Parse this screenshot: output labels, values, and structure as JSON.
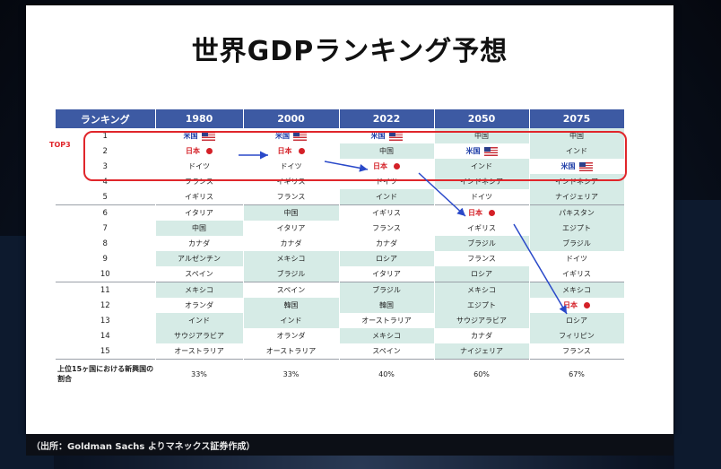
{
  "title": "世界GDPランキング予想",
  "top3_label": "TOP3",
  "footer": "（出所：Goldman Sachs よりマネックス証券作成）",
  "colors": {
    "header": "#3d5aa3",
    "highlight": "#d6ebe6",
    "japan": "#d42027",
    "us": "#1f3ea8",
    "arrow": "#2a49c9"
  },
  "table": {
    "headers": [
      "ランキング",
      "1980",
      "2000",
      "2022",
      "2050",
      "2075"
    ],
    "rows": [
      {
        "rank": "1",
        "cells": [
          {
            "t": "米国",
            "s": "us"
          },
          {
            "t": "米国",
            "s": "us"
          },
          {
            "t": "米国",
            "s": "us"
          },
          {
            "t": "中国",
            "h": true
          },
          {
            "t": "中国",
            "h": true
          }
        ]
      },
      {
        "rank": "2",
        "cells": [
          {
            "t": "日本",
            "s": "jp"
          },
          {
            "t": "日本",
            "s": "jp"
          },
          {
            "t": "中国",
            "h": true
          },
          {
            "t": "米国",
            "s": "us"
          },
          {
            "t": "インド",
            "h": true
          }
        ]
      },
      {
        "rank": "3",
        "cells": [
          {
            "t": "ドイツ"
          },
          {
            "t": "ドイツ"
          },
          {
            "t": "日本",
            "s": "jp"
          },
          {
            "t": "インド",
            "h": true
          },
          {
            "t": "米国",
            "s": "us"
          }
        ]
      },
      {
        "rank": "4",
        "cells": [
          {
            "t": "フランス"
          },
          {
            "t": "イギリス"
          },
          {
            "t": "ドイツ"
          },
          {
            "t": "インドネシア",
            "h": true
          },
          {
            "t": "インドネシア",
            "h": true
          }
        ]
      },
      {
        "rank": "5",
        "cells": [
          {
            "t": "イギリス"
          },
          {
            "t": "フランス"
          },
          {
            "t": "インド",
            "h": true
          },
          {
            "t": "ドイツ"
          },
          {
            "t": "ナイジェリア",
            "h": true
          }
        ]
      },
      {
        "rank": "6",
        "cells": [
          {
            "t": "イタリア"
          },
          {
            "t": "中国",
            "h": true
          },
          {
            "t": "イギリス"
          },
          {
            "t": "日本",
            "s": "jp"
          },
          {
            "t": "パキスタン",
            "h": true
          }
        ]
      },
      {
        "rank": "7",
        "cells": [
          {
            "t": "中国",
            "h": true
          },
          {
            "t": "イタリア"
          },
          {
            "t": "フランス"
          },
          {
            "t": "イギリス"
          },
          {
            "t": "エジプト",
            "h": true
          }
        ]
      },
      {
        "rank": "8",
        "cells": [
          {
            "t": "カナダ"
          },
          {
            "t": "カナダ"
          },
          {
            "t": "カナダ"
          },
          {
            "t": "ブラジル",
            "h": true
          },
          {
            "t": "ブラジル",
            "h": true
          }
        ]
      },
      {
        "rank": "9",
        "cells": [
          {
            "t": "アルゼンチン",
            "h": true
          },
          {
            "t": "メキシコ",
            "h": true
          },
          {
            "t": "ロシア",
            "h": true
          },
          {
            "t": "フランス"
          },
          {
            "t": "ドイツ"
          }
        ]
      },
      {
        "rank": "10",
        "cells": [
          {
            "t": "スペイン"
          },
          {
            "t": "ブラジル",
            "h": true
          },
          {
            "t": "イタリア"
          },
          {
            "t": "ロシア",
            "h": true
          },
          {
            "t": "イギリス"
          }
        ]
      },
      {
        "rank": "11",
        "cells": [
          {
            "t": "メキシコ",
            "h": true
          },
          {
            "t": "スペイン"
          },
          {
            "t": "ブラジル",
            "h": true
          },
          {
            "t": "メキシコ",
            "h": true
          },
          {
            "t": "メキシコ",
            "h": true
          }
        ]
      },
      {
        "rank": "12",
        "cells": [
          {
            "t": "オランダ"
          },
          {
            "t": "韓国",
            "h": true
          },
          {
            "t": "韓国",
            "h": true
          },
          {
            "t": "エジプト",
            "h": true
          },
          {
            "t": "日本",
            "s": "jp"
          }
        ]
      },
      {
        "rank": "13",
        "cells": [
          {
            "t": "インド",
            "h": true
          },
          {
            "t": "インド",
            "h": true
          },
          {
            "t": "オーストラリア"
          },
          {
            "t": "サウジアラビア",
            "h": true
          },
          {
            "t": "ロシア",
            "h": true
          }
        ]
      },
      {
        "rank": "14",
        "cells": [
          {
            "t": "サウジアラビア",
            "h": true
          },
          {
            "t": "オランダ"
          },
          {
            "t": "メキシコ",
            "h": true
          },
          {
            "t": "カナダ"
          },
          {
            "t": "フィリピン",
            "h": true
          }
        ]
      },
      {
        "rank": "15",
        "cells": [
          {
            "t": "オーストラリア"
          },
          {
            "t": "オーストラリア"
          },
          {
            "t": "スペイン"
          },
          {
            "t": "ナイジェリア",
            "h": true
          },
          {
            "t": "フランス"
          }
        ]
      }
    ],
    "footer_label": "上位15ヶ国における新興国の割合",
    "footer_values": [
      "33%",
      "33%",
      "40%",
      "60%",
      "67%"
    ]
  }
}
